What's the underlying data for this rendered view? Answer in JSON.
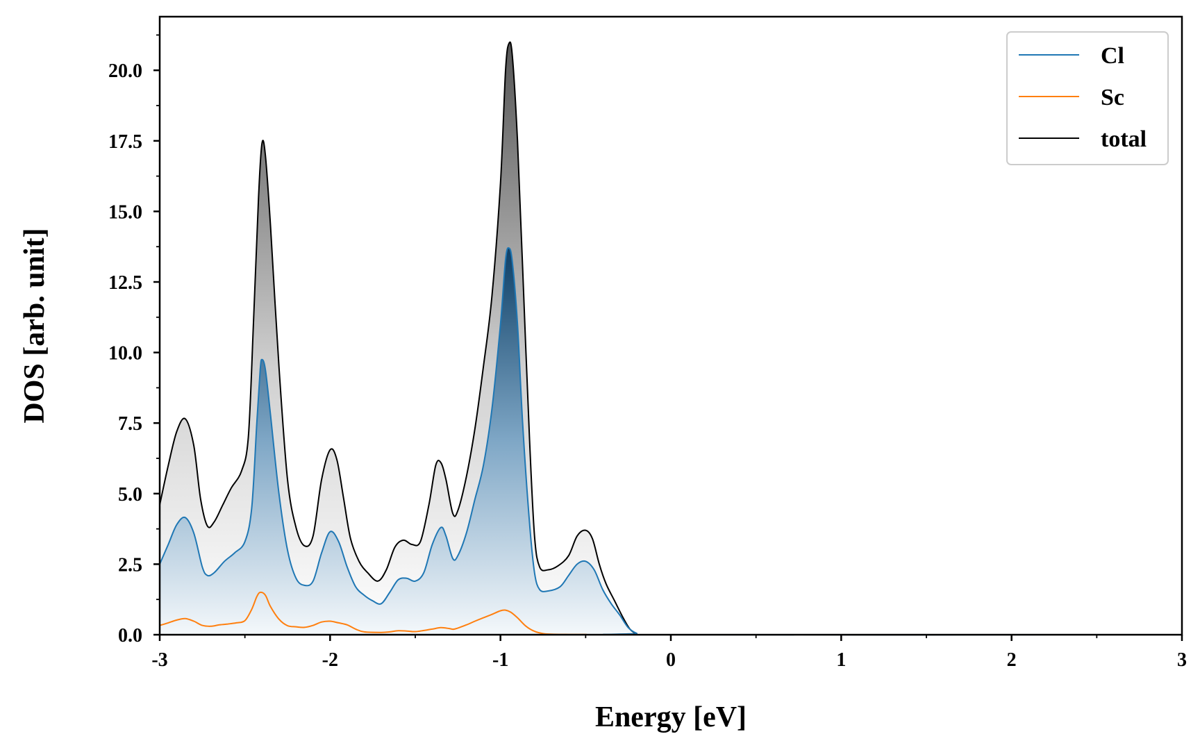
{
  "chart_data": {
    "type": "area",
    "xlabel": "Energy [eV]",
    "ylabel": "DOS [arb. unit]",
    "xlim": [
      -3,
      3
    ],
    "ylim": [
      0,
      21.9
    ],
    "x_ticks": [
      -3,
      -2,
      -1,
      0,
      1,
      2,
      3
    ],
    "x_tick_labels": [
      "-3",
      "-2",
      "-1",
      "0",
      "1",
      "2",
      "3"
    ],
    "y_ticks": [
      0,
      2.5,
      5,
      7.5,
      10,
      12.5,
      15,
      17.5,
      20
    ],
    "y_tick_labels": [
      "0.0",
      "2.5",
      "5.0",
      "7.5",
      "10.0",
      "12.5",
      "15.0",
      "17.5",
      "20.0"
    ],
    "x_minor_step": 0.5,
    "y_minor_step": 1.25,
    "grid": false,
    "legend_position": "top-right",
    "series": [
      {
        "name": "Cl",
        "color": "#1f77b4",
        "fill": "gradient-blue",
        "points": [
          [
            -3.0,
            2.5
          ],
          [
            -2.95,
            3.2
          ],
          [
            -2.9,
            3.9
          ],
          [
            -2.85,
            4.15
          ],
          [
            -2.8,
            3.6
          ],
          [
            -2.75,
            2.4
          ],
          [
            -2.72,
            2.1
          ],
          [
            -2.68,
            2.2
          ],
          [
            -2.62,
            2.6
          ],
          [
            -2.56,
            2.9
          ],
          [
            -2.5,
            3.3
          ],
          [
            -2.46,
            4.5
          ],
          [
            -2.43,
            7.5
          ],
          [
            -2.41,
            9.4
          ],
          [
            -2.4,
            9.75
          ],
          [
            -2.38,
            9.4
          ],
          [
            -2.35,
            7.8
          ],
          [
            -2.3,
            5.0
          ],
          [
            -2.25,
            3.0
          ],
          [
            -2.2,
            2.0
          ],
          [
            -2.15,
            1.75
          ],
          [
            -2.1,
            1.9
          ],
          [
            -2.05,
            2.9
          ],
          [
            -2.0,
            3.65
          ],
          [
            -1.95,
            3.3
          ],
          [
            -1.9,
            2.4
          ],
          [
            -1.85,
            1.7
          ],
          [
            -1.8,
            1.4
          ],
          [
            -1.75,
            1.2
          ],
          [
            -1.7,
            1.1
          ],
          [
            -1.65,
            1.5
          ],
          [
            -1.6,
            1.95
          ],
          [
            -1.55,
            2.0
          ],
          [
            -1.5,
            1.9
          ],
          [
            -1.45,
            2.2
          ],
          [
            -1.4,
            3.2
          ],
          [
            -1.35,
            3.8
          ],
          [
            -1.32,
            3.5
          ],
          [
            -1.28,
            2.7
          ],
          [
            -1.25,
            2.8
          ],
          [
            -1.2,
            3.6
          ],
          [
            -1.15,
            4.8
          ],
          [
            -1.1,
            6.0
          ],
          [
            -1.05,
            8.0
          ],
          [
            -1.0,
            11.0
          ],
          [
            -0.97,
            13.3
          ],
          [
            -0.95,
            13.7
          ],
          [
            -0.93,
            13.2
          ],
          [
            -0.9,
            11.0
          ],
          [
            -0.87,
            7.5
          ],
          [
            -0.83,
            4.0
          ],
          [
            -0.8,
            2.2
          ],
          [
            -0.77,
            1.6
          ],
          [
            -0.72,
            1.55
          ],
          [
            -0.65,
            1.7
          ],
          [
            -0.6,
            2.1
          ],
          [
            -0.55,
            2.5
          ],
          [
            -0.5,
            2.6
          ],
          [
            -0.45,
            2.3
          ],
          [
            -0.4,
            1.6
          ],
          [
            -0.35,
            1.1
          ],
          [
            -0.3,
            0.7
          ],
          [
            -0.25,
            0.25
          ],
          [
            -0.2,
            0.05
          ],
          [
            -0.15,
            0.0
          ],
          [
            3.0,
            0.0
          ]
        ]
      },
      {
        "name": "Sc",
        "color": "#ff7f0e",
        "fill": "none",
        "points": [
          [
            -3.0,
            0.33
          ],
          [
            -2.95,
            0.42
          ],
          [
            -2.9,
            0.52
          ],
          [
            -2.85,
            0.57
          ],
          [
            -2.8,
            0.48
          ],
          [
            -2.75,
            0.33
          ],
          [
            -2.7,
            0.3
          ],
          [
            -2.65,
            0.35
          ],
          [
            -2.6,
            0.38
          ],
          [
            -2.55,
            0.42
          ],
          [
            -2.5,
            0.5
          ],
          [
            -2.46,
            0.9
          ],
          [
            -2.43,
            1.35
          ],
          [
            -2.41,
            1.5
          ],
          [
            -2.38,
            1.4
          ],
          [
            -2.35,
            1.0
          ],
          [
            -2.3,
            0.55
          ],
          [
            -2.25,
            0.32
          ],
          [
            -2.2,
            0.28
          ],
          [
            -2.15,
            0.26
          ],
          [
            -2.1,
            0.33
          ],
          [
            -2.05,
            0.45
          ],
          [
            -2.0,
            0.48
          ],
          [
            -1.95,
            0.42
          ],
          [
            -1.9,
            0.35
          ],
          [
            -1.85,
            0.2
          ],
          [
            -1.8,
            0.1
          ],
          [
            -1.7,
            0.08
          ],
          [
            -1.65,
            0.1
          ],
          [
            -1.6,
            0.14
          ],
          [
            -1.55,
            0.13
          ],
          [
            -1.5,
            0.11
          ],
          [
            -1.45,
            0.15
          ],
          [
            -1.4,
            0.2
          ],
          [
            -1.35,
            0.25
          ],
          [
            -1.3,
            0.22
          ],
          [
            -1.27,
            0.2
          ],
          [
            -1.2,
            0.35
          ],
          [
            -1.15,
            0.48
          ],
          [
            -1.1,
            0.6
          ],
          [
            -1.05,
            0.72
          ],
          [
            -1.0,
            0.85
          ],
          [
            -0.97,
            0.87
          ],
          [
            -0.94,
            0.8
          ],
          [
            -0.9,
            0.6
          ],
          [
            -0.85,
            0.3
          ],
          [
            -0.8,
            0.12
          ],
          [
            -0.75,
            0.04
          ],
          [
            -0.7,
            0.02
          ],
          [
            -0.6,
            0.01
          ],
          [
            -0.5,
            0.01
          ],
          [
            -0.3,
            0.0
          ],
          [
            3.0,
            0.0
          ]
        ]
      },
      {
        "name": "total",
        "color": "#000000",
        "fill": "gradient-gray",
        "points": [
          [
            -3.0,
            4.6
          ],
          [
            -2.95,
            6.0
          ],
          [
            -2.9,
            7.2
          ],
          [
            -2.85,
            7.65
          ],
          [
            -2.8,
            6.7
          ],
          [
            -2.76,
            4.8
          ],
          [
            -2.72,
            3.85
          ],
          [
            -2.68,
            4.0
          ],
          [
            -2.63,
            4.6
          ],
          [
            -2.58,
            5.2
          ],
          [
            -2.52,
            5.8
          ],
          [
            -2.48,
            7.0
          ],
          [
            -2.45,
            11.0
          ],
          [
            -2.42,
            15.5
          ],
          [
            -2.4,
            17.4
          ],
          [
            -2.38,
            17.0
          ],
          [
            -2.35,
            14.5
          ],
          [
            -2.3,
            9.5
          ],
          [
            -2.25,
            5.5
          ],
          [
            -2.2,
            3.8
          ],
          [
            -2.15,
            3.15
          ],
          [
            -2.1,
            3.5
          ],
          [
            -2.05,
            5.5
          ],
          [
            -2.0,
            6.55
          ],
          [
            -1.96,
            6.2
          ],
          [
            -1.92,
            4.8
          ],
          [
            -1.88,
            3.4
          ],
          [
            -1.83,
            2.6
          ],
          [
            -1.78,
            2.2
          ],
          [
            -1.72,
            1.9
          ],
          [
            -1.67,
            2.3
          ],
          [
            -1.62,
            3.1
          ],
          [
            -1.57,
            3.35
          ],
          [
            -1.52,
            3.2
          ],
          [
            -1.47,
            3.3
          ],
          [
            -1.42,
            4.6
          ],
          [
            -1.38,
            6.0
          ],
          [
            -1.35,
            6.1
          ],
          [
            -1.32,
            5.5
          ],
          [
            -1.28,
            4.3
          ],
          [
            -1.25,
            4.4
          ],
          [
            -1.2,
            5.6
          ],
          [
            -1.15,
            7.3
          ],
          [
            -1.1,
            9.5
          ],
          [
            -1.05,
            12.0
          ],
          [
            -1.0,
            16.0
          ],
          [
            -0.97,
            20.0
          ],
          [
            -0.95,
            20.95
          ],
          [
            -0.93,
            20.5
          ],
          [
            -0.9,
            17.5
          ],
          [
            -0.87,
            13.0
          ],
          [
            -0.83,
            7.0
          ],
          [
            -0.8,
            3.5
          ],
          [
            -0.77,
            2.4
          ],
          [
            -0.72,
            2.3
          ],
          [
            -0.66,
            2.45
          ],
          [
            -0.6,
            2.8
          ],
          [
            -0.55,
            3.5
          ],
          [
            -0.5,
            3.7
          ],
          [
            -0.46,
            3.4
          ],
          [
            -0.42,
            2.5
          ],
          [
            -0.38,
            1.8
          ],
          [
            -0.33,
            1.2
          ],
          [
            -0.28,
            0.6
          ],
          [
            -0.24,
            0.2
          ],
          [
            -0.2,
            0.03
          ],
          [
            -0.15,
            0.0
          ],
          [
            3.0,
            0.0
          ]
        ]
      }
    ]
  }
}
